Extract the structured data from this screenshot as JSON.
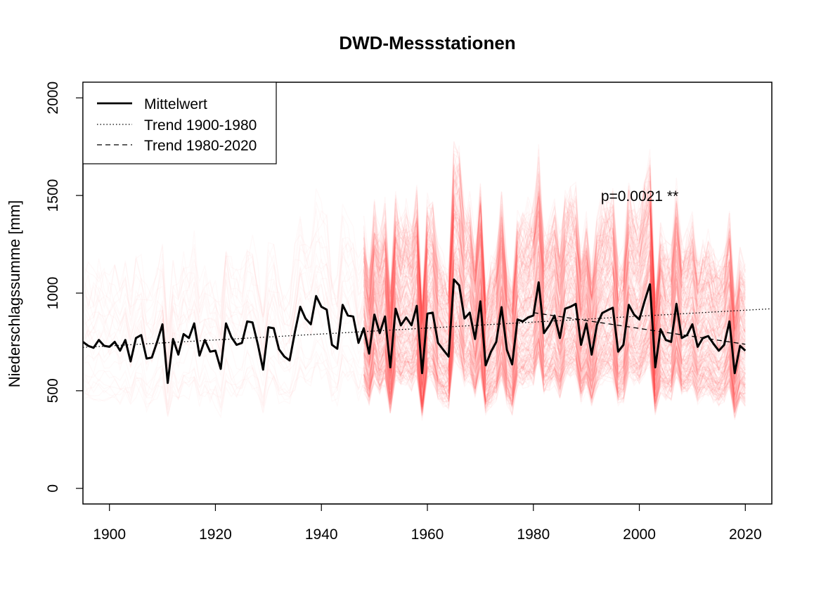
{
  "chart_data": {
    "type": "line",
    "title": "DWD-Messstationen",
    "xlabel": "",
    "ylabel": "Niederschlagssumme [mm]",
    "xlim": [
      1895,
      2025
    ],
    "ylim": [
      -80,
      2080
    ],
    "xticks": [
      "1900",
      "1920",
      "1940",
      "1960",
      "1980",
      "2000",
      "2020"
    ],
    "yticks": [
      "0",
      "500",
      "1000",
      "1500",
      "2000"
    ],
    "legend_position": "top-left",
    "annotation": "p=0.0021 **",
    "colors": {
      "mean": "#000000",
      "stations": "#ff0000"
    },
    "legend": [
      {
        "label": "Mittelwert",
        "style": "solid"
      },
      {
        "label": "Trend 1900-1980",
        "style": "dotted"
      },
      {
        "label": "Trend 1980-2020",
        "style": "dashed"
      }
    ],
    "series": [
      {
        "name": "Mittelwert",
        "x": [
          1895,
          1896,
          1897,
          1898,
          1899,
          1900,
          1901,
          1902,
          1903,
          1904,
          1905,
          1906,
          1907,
          1908,
          1909,
          1910,
          1911,
          1912,
          1913,
          1914,
          1915,
          1916,
          1917,
          1918,
          1919,
          1920,
          1921,
          1922,
          1923,
          1924,
          1925,
          1926,
          1927,
          1928,
          1929,
          1930,
          1931,
          1932,
          1933,
          1934,
          1935,
          1936,
          1937,
          1938,
          1939,
          1940,
          1941,
          1942,
          1943,
          1944,
          1945,
          1946,
          1947,
          1948,
          1949,
          1950,
          1951,
          1952,
          1953,
          1954,
          1955,
          1956,
          1957,
          1958,
          1959,
          1960,
          1961,
          1962,
          1963,
          1964,
          1965,
          1966,
          1967,
          1968,
          1969,
          1970,
          1971,
          1972,
          1973,
          1974,
          1975,
          1976,
          1977,
          1978,
          1979,
          1980,
          1981,
          1982,
          1983,
          1984,
          1985,
          1986,
          1987,
          1988,
          1989,
          1990,
          1991,
          1992,
          1993,
          1994,
          1995,
          1996,
          1997,
          1998,
          1999,
          2000,
          2001,
          2002,
          2003,
          2004,
          2005,
          2006,
          2007,
          2008,
          2009,
          2010,
          2011,
          2012,
          2013,
          2014,
          2015,
          2016,
          2017,
          2018,
          2019,
          2020
        ],
        "y": [
          750,
          730,
          720,
          760,
          730,
          725,
          750,
          705,
          760,
          650,
          770,
          785,
          665,
          670,
          750,
          840,
          540,
          765,
          685,
          790,
          770,
          845,
          680,
          760,
          700,
          705,
          612,
          845,
          775,
          735,
          745,
          855,
          850,
          738,
          608,
          825,
          820,
          712,
          675,
          655,
          800,
          930,
          870,
          840,
          985,
          930,
          915,
          735,
          715,
          940,
          885,
          880,
          745,
          820,
          690,
          890,
          795,
          880,
          620,
          920,
          835,
          875,
          835,
          935,
          590,
          895,
          900,
          745,
          710,
          675,
          1070,
          1040,
          870,
          900,
          765,
          958,
          630,
          700,
          750,
          928,
          710,
          635,
          865,
          855,
          875,
          885,
          1055,
          795,
          835,
          885,
          770,
          920,
          930,
          945,
          735,
          845,
          685,
          838,
          898,
          912,
          925,
          700,
          735,
          940,
          890,
          865,
          960,
          1045,
          620,
          815,
          760,
          750,
          945,
          770,
          785,
          840,
          725,
          770,
          780,
          740,
          705,
          735,
          855,
          590,
          730,
          705
        ]
      },
      {
        "name": "Trend 1900-1980",
        "x": [
          1895,
          2025
        ],
        "y": [
          722,
          920
        ]
      },
      {
        "name": "Trend 1980-2020",
        "x": [
          1980,
          2020
        ],
        "y": [
          900,
          738
        ]
      }
    ]
  }
}
